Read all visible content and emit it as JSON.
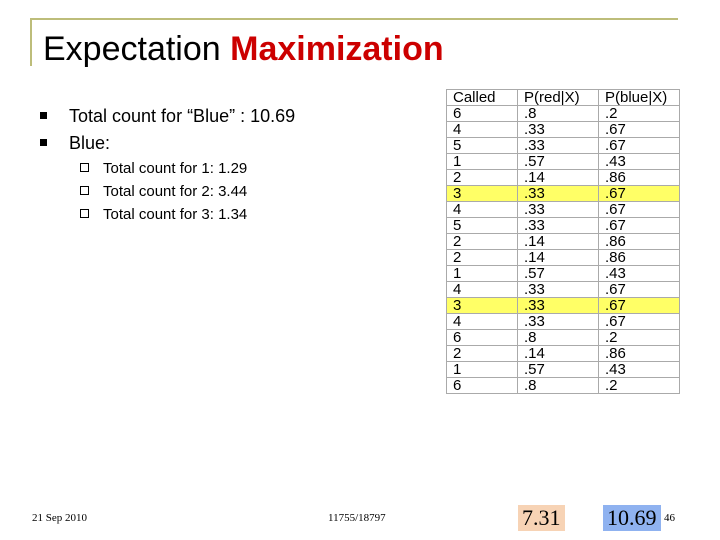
{
  "title": {
    "plain": "Expectation",
    "accent": "Maximization"
  },
  "bullets": [
    {
      "text": "Total count for “Blue” : 10.69"
    },
    {
      "text": "Blue:"
    }
  ],
  "sub_bullets": [
    {
      "text": "Total count for 1:  1.29"
    },
    {
      "text": "Total count for 2:  3.44"
    },
    {
      "text": "Total count for 3:  1.34"
    }
  ],
  "table": {
    "headers": [
      "Called",
      "P(red|X)",
      "P(blue|X)"
    ],
    "rows": [
      {
        "called": "6",
        "red": ".8",
        "blue": ".2",
        "highlight": false
      },
      {
        "called": "4",
        "red": ".33",
        "blue": ".67",
        "highlight": false
      },
      {
        "called": "5",
        "red": ".33",
        "blue": ".67",
        "highlight": false
      },
      {
        "called": "1",
        "red": ".57",
        "blue": ".43",
        "highlight": false
      },
      {
        "called": "2",
        "red": ".14",
        "blue": ".86",
        "highlight": false
      },
      {
        "called": "3",
        "red": ".33",
        "blue": ".67",
        "highlight": true
      },
      {
        "called": "4",
        "red": ".33",
        "blue": ".67",
        "highlight": false
      },
      {
        "called": "5",
        "red": ".33",
        "blue": ".67",
        "highlight": false
      },
      {
        "called": "2",
        "red": ".14",
        "blue": ".86",
        "highlight": false
      },
      {
        "called": "2",
        "red": ".14",
        "blue": ".86",
        "highlight": false
      },
      {
        "called": "1",
        "red": ".57",
        "blue": ".43",
        "highlight": false
      },
      {
        "called": "4",
        "red": ".33",
        "blue": ".67",
        "highlight": false
      },
      {
        "called": "3",
        "red": ".33",
        "blue": ".67",
        "highlight": true
      },
      {
        "called": "4",
        "red": ".33",
        "blue": ".67",
        "highlight": false
      },
      {
        "called": "6",
        "red": ".8",
        "blue": ".2",
        "highlight": false
      },
      {
        "called": "2",
        "red": ".14",
        "blue": ".86",
        "highlight": false
      },
      {
        "called": "1",
        "red": ".57",
        "blue": ".43",
        "highlight": false
      },
      {
        "called": "6",
        "red": ".8",
        "blue": ".2",
        "highlight": false
      }
    ]
  },
  "totals": {
    "red": "7.31",
    "blue": "10.69"
  },
  "colors": {
    "accent": "#cc0000",
    "highlight": "#ffff66",
    "red_total_bg": "#f7d3b5",
    "blue_total_bg": "#8fb2f0"
  },
  "footer": {
    "date": "21 Sep 2010",
    "course": "11755/18797",
    "page": "46"
  }
}
